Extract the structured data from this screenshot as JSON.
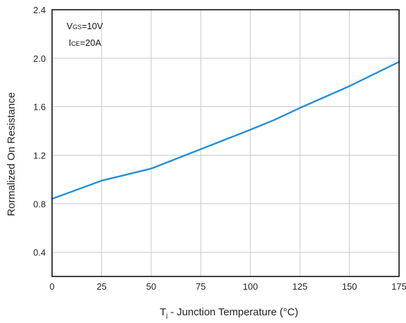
{
  "chart_data": {
    "type": "line",
    "title": "",
    "xlabel_main": "T",
    "xlabel_sub": "j",
    "xlabel_rest": " - Junction Temperature (°C)",
    "ylabel": "Rormalized On Resistance",
    "xlim": [
      0,
      175
    ],
    "ylim": [
      0.2,
      2.4
    ],
    "x_ticks": [
      "0",
      "25",
      "50",
      "75",
      "100",
      "125",
      "150",
      "175"
    ],
    "y_ticks": [
      "0.4",
      "0.8",
      "1.2",
      "1.6",
      "2.0",
      "2.4"
    ],
    "grid": true,
    "line_color": "#1f8fd6",
    "annotations": [
      {
        "main": "V",
        "sub": "GS",
        "rest": "=10V"
      },
      {
        "main": "I",
        "sub": "CE",
        "rest": "=20A"
      }
    ],
    "series": [
      {
        "x": [
          0,
          25,
          50,
          75,
          100,
          112,
          125,
          150,
          175
        ],
        "y": [
          0.84,
          0.99,
          1.09,
          1.25,
          1.41,
          1.49,
          1.59,
          1.77,
          1.97
        ]
      }
    ]
  }
}
